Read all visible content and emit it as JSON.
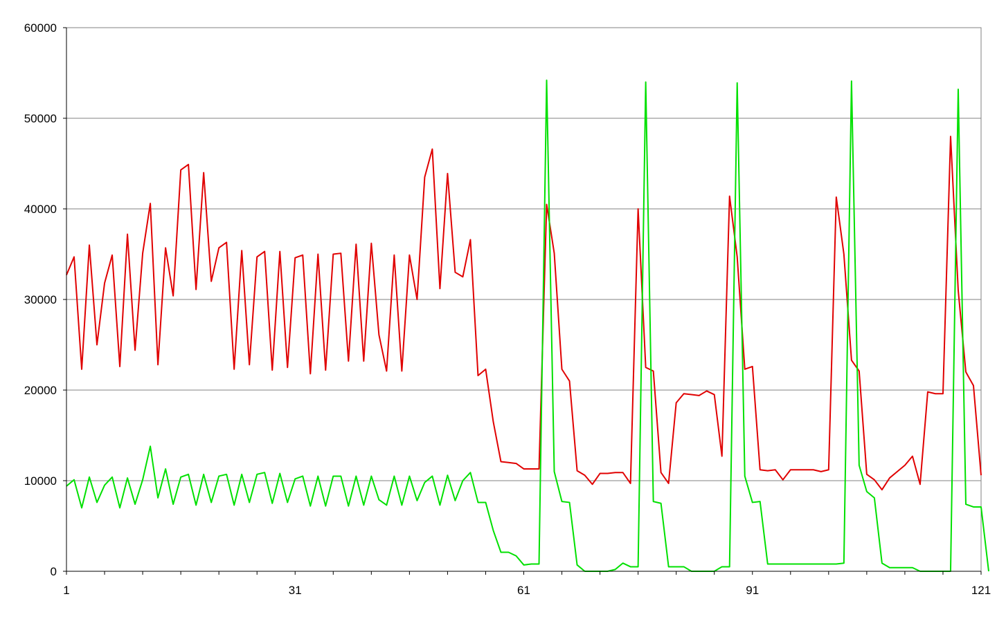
{
  "chart_data": {
    "type": "line",
    "title": "",
    "xlabel": "",
    "ylabel": "",
    "ylim": [
      0,
      60000
    ],
    "xlim": [
      1,
      121
    ],
    "x_tick_labels": [
      "1",
      "31",
      "61",
      "91",
      "121"
    ],
    "y_tick_labels": [
      "0",
      "10000",
      "20000",
      "30000",
      "40000",
      "50000",
      "60000"
    ],
    "grid": "horizontal",
    "legend": "none",
    "series": [
      {
        "color": "#e00000",
        "values": [
          32700,
          34700,
          22300,
          36000,
          25000,
          31800,
          34900,
          22600,
          37200,
          24400,
          35100,
          40600,
          22800,
          35700,
          30400,
          44300,
          44900,
          31100,
          44000,
          32000,
          35700,
          36300,
          22300,
          35400,
          22800,
          34700,
          35300,
          22200,
          35300,
          22500,
          34600,
          34900,
          21800,
          35000,
          22200,
          35000,
          35100,
          23200,
          36100,
          23200,
          36200,
          26100,
          22100,
          34900,
          22100,
          34900,
          30000,
          43500,
          46600,
          31200,
          43900,
          33000,
          32500,
          36600,
          21600,
          22300,
          16500,
          12100,
          12000,
          11900,
          11300,
          11300,
          11300,
          40500,
          35100,
          22300,
          21000,
          11100,
          10600,
          9600,
          10800,
          10800,
          10900,
          10900,
          9700,
          40000,
          22500,
          22100,
          10900,
          9700,
          18600,
          19600,
          19500,
          19400,
          19900,
          19500,
          12700,
          41400,
          34700,
          22300,
          22600,
          11200,
          11100,
          11200,
          10100,
          11200,
          11200,
          11200,
          11200,
          11000,
          11200,
          41300,
          35000,
          23300,
          22100,
          10700,
          10100,
          9000,
          10300,
          11000,
          11700,
          12700,
          9600,
          19800,
          19600,
          19600,
          48000,
          31000,
          22000,
          20500,
          10600
        ]
      },
      {
        "color": "#00e000",
        "values": [
          9400,
          10100,
          7000,
          10400,
          7600,
          9500,
          10400,
          7000,
          10300,
          7400,
          10100,
          13800,
          8100,
          11300,
          7400,
          10400,
          10700,
          7300,
          10700,
          7600,
          10500,
          10700,
          7300,
          10700,
          7600,
          10700,
          10900,
          7500,
          10800,
          7600,
          10200,
          10500,
          7200,
          10500,
          7200,
          10500,
          10500,
          7200,
          10500,
          7300,
          10500,
          7900,
          7300,
          10500,
          7300,
          10500,
          7800,
          9800,
          10500,
          7300,
          10600,
          7800,
          10000,
          10900,
          7600,
          7600,
          4500,
          2100,
          2100,
          1700,
          700,
          800,
          800,
          54200,
          11000,
          7700,
          7600,
          700,
          0,
          0,
          0,
          0,
          200,
          900,
          500,
          500,
          54000,
          7700,
          7500,
          500,
          500,
          500,
          0,
          0,
          0,
          0,
          500,
          500,
          53900,
          10500,
          7600,
          7700,
          800,
          800,
          800,
          800,
          800,
          800,
          800,
          800,
          800,
          800,
          900,
          54100,
          11700,
          8800,
          8100,
          900,
          400,
          400,
          400,
          400,
          0,
          0,
          0,
          0,
          0,
          53200,
          7400,
          7100,
          7100,
          0
        ]
      }
    ]
  }
}
